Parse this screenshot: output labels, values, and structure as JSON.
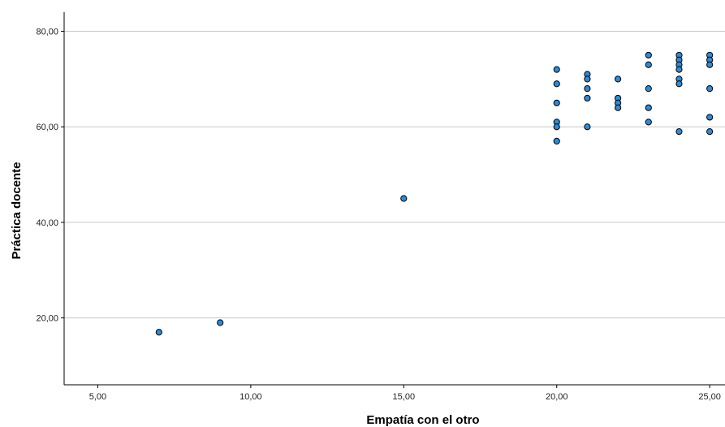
{
  "chart_data": {
    "type": "scatter",
    "title": "",
    "xlabel": "Empatía con el otro",
    "ylabel": "Práctica docente",
    "xlim": [
      3.9,
      25.5
    ],
    "ylim": [
      6,
      84
    ],
    "x_ticks": [
      5,
      10,
      15,
      20,
      25
    ],
    "x_tick_labels": [
      "5,00",
      "10,00",
      "15,00",
      "20,00",
      "25,00"
    ],
    "y_ticks": [
      20,
      40,
      60,
      80
    ],
    "y_tick_labels": [
      "20,00",
      "40,00",
      "60,00",
      "80,00"
    ],
    "grid": "horizontal",
    "point_color": "#2e8bd6",
    "points": [
      {
        "x": 7,
        "y": 17
      },
      {
        "x": 9,
        "y": 19
      },
      {
        "x": 15,
        "y": 45
      },
      {
        "x": 20,
        "y": 72
      },
      {
        "x": 20,
        "y": 69
      },
      {
        "x": 20,
        "y": 65
      },
      {
        "x": 20,
        "y": 61
      },
      {
        "x": 20,
        "y": 60
      },
      {
        "x": 20,
        "y": 57
      },
      {
        "x": 21,
        "y": 71
      },
      {
        "x": 21,
        "y": 70
      },
      {
        "x": 21,
        "y": 68
      },
      {
        "x": 21,
        "y": 66
      },
      {
        "x": 21,
        "y": 60
      },
      {
        "x": 22,
        "y": 70
      },
      {
        "x": 22,
        "y": 66
      },
      {
        "x": 22,
        "y": 65
      },
      {
        "x": 22,
        "y": 64
      },
      {
        "x": 23,
        "y": 75
      },
      {
        "x": 23,
        "y": 73
      },
      {
        "x": 23,
        "y": 68
      },
      {
        "x": 23,
        "y": 64
      },
      {
        "x": 23,
        "y": 61
      },
      {
        "x": 24,
        "y": 75
      },
      {
        "x": 24,
        "y": 74
      },
      {
        "x": 24,
        "y": 73
      },
      {
        "x": 24,
        "y": 72
      },
      {
        "x": 24,
        "y": 70
      },
      {
        "x": 24,
        "y": 69
      },
      {
        "x": 24,
        "y": 59
      },
      {
        "x": 25,
        "y": 75
      },
      {
        "x": 25,
        "y": 74
      },
      {
        "x": 25,
        "y": 73
      },
      {
        "x": 25,
        "y": 68
      },
      {
        "x": 25,
        "y": 62
      },
      {
        "x": 25,
        "y": 59
      }
    ]
  }
}
